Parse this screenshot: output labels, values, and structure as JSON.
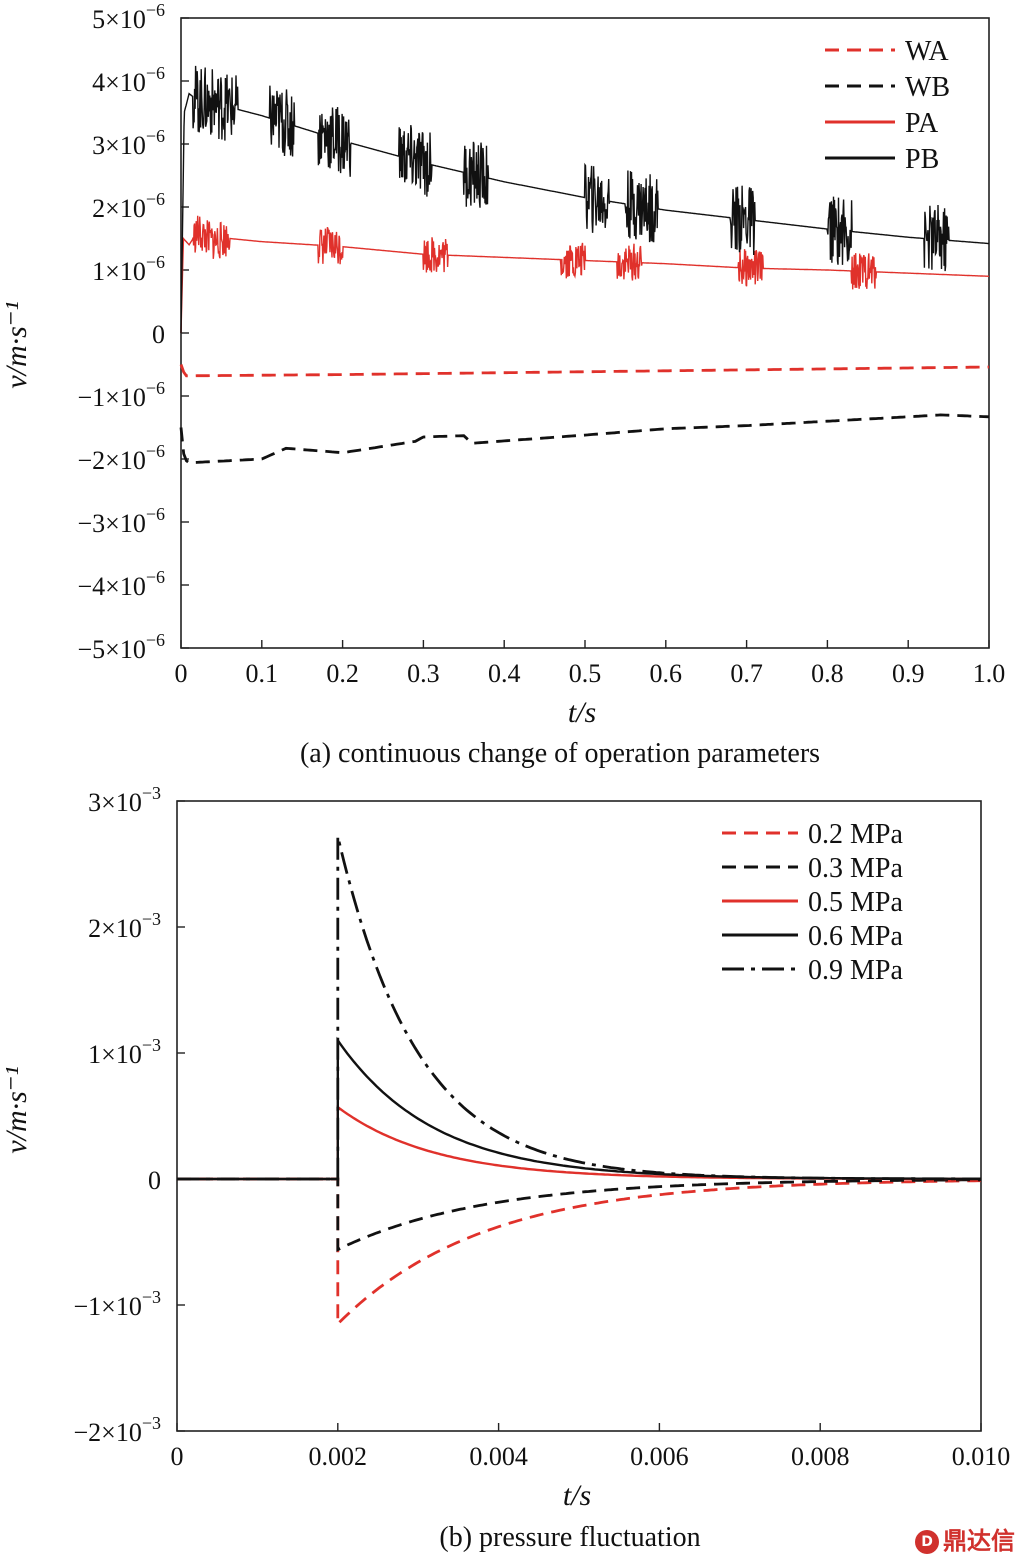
{
  "chart_data": [
    {
      "type": "line",
      "title": "",
      "caption": "(a) continuous change of operation parameters",
      "xlabel": "t/s",
      "ylabel": "v/m·s⁻¹",
      "xlim": [
        0,
        1.0
      ],
      "ylim": [
        -5e-06,
        5e-06
      ],
      "x_ticks": [
        "0",
        "0.1",
        "0.2",
        "0.3",
        "0.4",
        "0.5",
        "0.6",
        "0.7",
        "0.8",
        "0.9",
        "1.0"
      ],
      "y_ticks": [
        {
          "value": 5e-06,
          "mantissa": "5",
          "exp": "−6"
        },
        {
          "value": 4e-06,
          "mantissa": "4",
          "exp": "−6"
        },
        {
          "value": 3e-06,
          "mantissa": "3",
          "exp": "−6"
        },
        {
          "value": 2e-06,
          "mantissa": "2",
          "exp": "−6"
        },
        {
          "value": 1e-06,
          "mantissa": "1",
          "exp": "−6"
        },
        {
          "value": 0,
          "mantissa": "0",
          "exp": ""
        },
        {
          "value": -1e-06,
          "mantissa": "−1",
          "exp": "−6"
        },
        {
          "value": -2e-06,
          "mantissa": "−2",
          "exp": "−6"
        },
        {
          "value": -3e-06,
          "mantissa": "−3",
          "exp": "−6"
        },
        {
          "value": -4e-06,
          "mantissa": "−4",
          "exp": "−6"
        },
        {
          "value": -5e-06,
          "mantissa": "−5",
          "exp": "−6"
        }
      ],
      "legend_position": "top-right",
      "series": [
        {
          "name": "WA",
          "color": "#e0312b",
          "dash": "dashed",
          "x": [
            0,
            0.005,
            0.2,
            0.4,
            0.6,
            0.8,
            1.0
          ],
          "values": [
            -5e-07,
            -6.8e-07,
            -6.6e-07,
            -6.3e-07,
            -6e-07,
            -5.7e-07,
            -5.4e-07
          ]
        },
        {
          "name": "WB",
          "color": "#111111",
          "dash": "dashed",
          "x": [
            0,
            0.004,
            0.01,
            0.1,
            0.13,
            0.15,
            0.2,
            0.29,
            0.3,
            0.35,
            0.36,
            0.5,
            0.6,
            0.7,
            0.8,
            0.9,
            0.94,
            1.0
          ],
          "values": [
            -1.5e-06,
            -2e-06,
            -2.06e-06,
            -2e-06,
            -1.83e-06,
            -1.85e-06,
            -1.9e-06,
            -1.72e-06,
            -1.65e-06,
            -1.63e-06,
            -1.75e-06,
            -1.62e-06,
            -1.52e-06,
            -1.47e-06,
            -1.4e-06,
            -1.33e-06,
            -1.3e-06,
            -1.33e-06
          ]
        },
        {
          "name": "PA",
          "color": "#e0312b",
          "dash": "solid",
          "x": [
            0,
            0.003,
            0.01,
            0.02,
            0.04,
            0.06,
            0.1,
            0.2,
            0.3,
            0.4,
            0.5,
            0.6,
            0.7,
            0.8,
            0.9,
            1.0
          ],
          "values": [
            0,
            1.5e-06,
            1.4e-06,
            1.6e-06,
            1.45e-06,
            1.5e-06,
            1.45e-06,
            1.37e-06,
            1.25e-06,
            1.2e-06,
            1.15e-06,
            1.1e-06,
            1.03e-06,
            1e-06,
            9.5e-07,
            9e-07
          ]
        },
        {
          "name": "PB",
          "color": "#111111",
          "dash": "solid",
          "x": [
            0,
            0.004,
            0.01,
            0.02,
            0.04,
            0.1,
            0.2,
            0.3,
            0.4,
            0.5,
            0.6,
            0.7,
            0.8,
            0.9,
            1.0
          ],
          "values": [
            0,
            3.5e-06,
            3.8e-06,
            3.7e-06,
            3.65e-06,
            3.45e-06,
            3.05e-06,
            2.7e-06,
            2.4e-06,
            2.15e-06,
            1.95e-06,
            1.8e-06,
            1.65e-06,
            1.52e-06,
            1.42e-06
          ]
        }
      ]
    },
    {
      "type": "line",
      "title": "",
      "caption": "(b) pressure fluctuation",
      "xlabel": "t/s",
      "ylabel": "v/m·s⁻¹",
      "xlim": [
        0,
        0.01
      ],
      "ylim": [
        -0.002,
        0.003
      ],
      "x_ticks": [
        "0",
        "0.002",
        "0.004",
        "0.006",
        "0.008",
        "0.010"
      ],
      "y_ticks": [
        {
          "value": 0.003,
          "mantissa": "3",
          "exp": "−3"
        },
        {
          "value": 0.002,
          "mantissa": "2",
          "exp": "−3"
        },
        {
          "value": 0.001,
          "mantissa": "1",
          "exp": "−3"
        },
        {
          "value": 0,
          "mantissa": "0",
          "exp": ""
        },
        {
          "value": -0.001,
          "mantissa": "−1",
          "exp": "−3"
        },
        {
          "value": -0.002,
          "mantissa": "−2",
          "exp": "−3"
        }
      ],
      "legend_position": "top-right",
      "step_time": 0.002,
      "series": [
        {
          "name": "0.2 MPa",
          "color": "#e0312b",
          "dash": "dashed",
          "peak": -0.00115,
          "tau": 0.0018
        },
        {
          "name": "0.3 MPa",
          "color": "#111111",
          "dash": "dashed",
          "peak": -0.00056,
          "tau": 0.0018
        },
        {
          "name": "0.5 MPa",
          "color": "#e0312b",
          "dash": "solid",
          "peak": 0.00057,
          "tau": 0.0012
        },
        {
          "name": "0.6 MPa",
          "color": "#111111",
          "dash": "solid",
          "peak": 0.0011,
          "tau": 0.0012
        },
        {
          "name": "0.9 MPa",
          "color": "#111111",
          "dash": "dashdot",
          "peak": 0.00272,
          "tau": 0.001
        }
      ]
    }
  ],
  "watermark": "鼎达信"
}
